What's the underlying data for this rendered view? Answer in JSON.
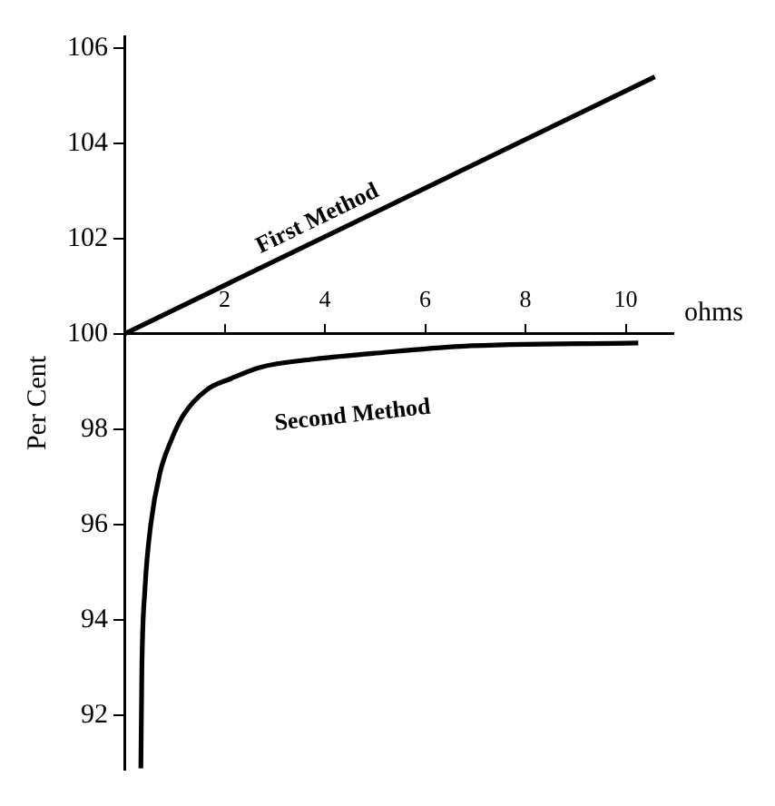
{
  "chart_data": {
    "type": "line",
    "xlabel": "ohms",
    "ylabel": "Per Cent",
    "xlim": [
      0,
      10.95
    ],
    "xticks": [
      2,
      4,
      6,
      8,
      10
    ],
    "ylim": [
      90.85,
      106.25
    ],
    "yticks": [
      92,
      94,
      96,
      98,
      100,
      102,
      104,
      106
    ],
    "grid": false,
    "legend": false,
    "marker": "none",
    "line_style": "solid",
    "series": [
      {
        "name": "First Method",
        "color": "#000000",
        "x": [
          0,
          10.58
        ],
        "values": [
          100,
          105.4
        ]
      },
      {
        "name": "Second Method",
        "color": "#000000",
        "x": [
          0.33,
          0.35,
          0.41,
          0.53,
          0.71,
          0.94,
          1.18,
          1.65,
          2.12,
          2.71,
          3.77,
          4.95,
          6.71,
          10.25
        ],
        "values": [
          90.88,
          92.98,
          94.62,
          96.02,
          97.08,
          97.78,
          98.3,
          98.83,
          99.06,
          99.3,
          99.47,
          99.59,
          99.74,
          99.81
        ]
      }
    ]
  }
}
